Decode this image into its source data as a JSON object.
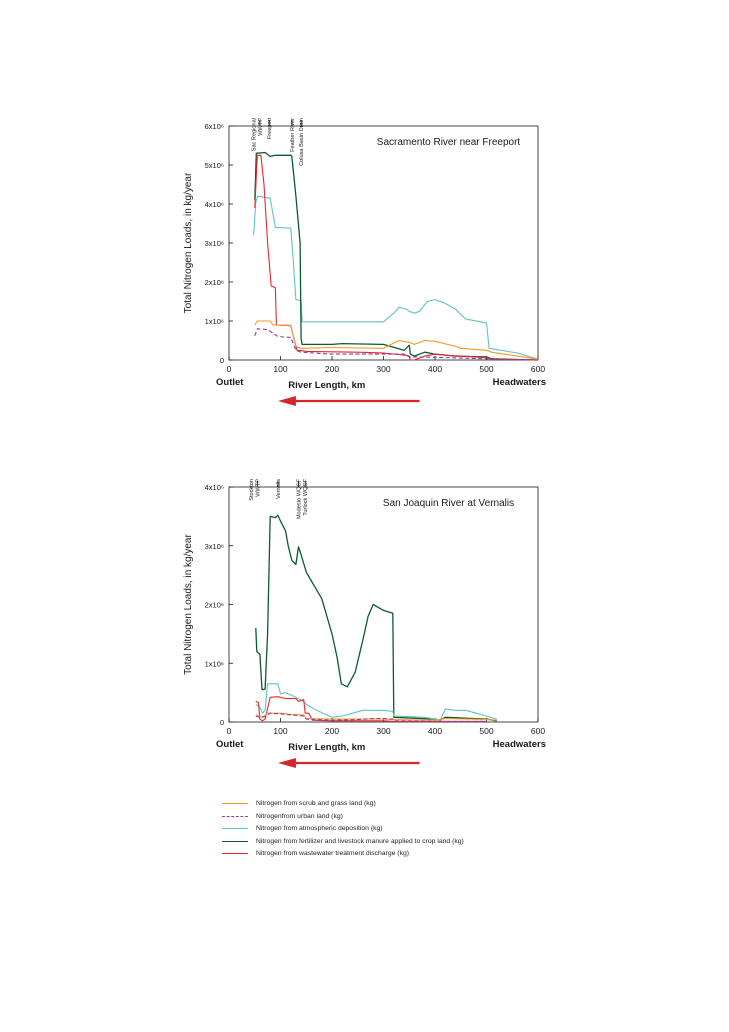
{
  "chart_data": [
    {
      "type": "line",
      "title": "Sacramento River near Freeport",
      "xlabel": "River Length, km",
      "ylabel": "Total Nitrogen Loads, in kg/year",
      "outlet_label": "Outlet",
      "headwaters_label": "Headwaters",
      "xlim": [
        0,
        600
      ],
      "ylim": [
        0,
        6000000
      ],
      "x_ticks": [
        "0",
        "100",
        "200",
        "300",
        "400",
        "500",
        "600"
      ],
      "y_ticks": [
        "0",
        "1x10⁶",
        "2x10⁶",
        "3x10⁶",
        "4x10⁶",
        "5x10⁶",
        "6x10⁶"
      ],
      "landmarks": [
        {
          "label": "Sac Regional WWTP",
          "lines": [
            "Sac Regional",
            "WWTP"
          ],
          "x": 60
        },
        {
          "label": "Freeport",
          "lines": [
            "Freeport"
          ],
          "x": 78
        },
        {
          "label": "Feather River",
          "lines": [
            "Feather River"
          ],
          "x": 122
        },
        {
          "label": "Colusa Basin Drain",
          "lines": [
            "Colusa Basin Drain"
          ],
          "x": 140
        }
      ],
      "series": [
        {
          "key": "atm",
          "points": [
            [
              48,
              3200000
            ],
            [
              52,
              4050000
            ],
            [
              56,
              4200000
            ],
            [
              80,
              4150000
            ],
            [
              90,
              3400000
            ],
            [
              120,
              3380000
            ],
            [
              125,
              2500000
            ],
            [
              130,
              1550000
            ],
            [
              140,
              1520000
            ],
            [
              142,
              980000
            ],
            [
              300,
              980000
            ],
            [
              320,
              1200000
            ],
            [
              330,
              1350000
            ],
            [
              345,
              1300000
            ],
            [
              350,
              1250000
            ],
            [
              360,
              1200000
            ],
            [
              370,
              1250000
            ],
            [
              385,
              1500000
            ],
            [
              400,
              1550000
            ],
            [
              420,
              1450000
            ],
            [
              440,
              1300000
            ],
            [
              460,
              1050000
            ],
            [
              500,
              950000
            ],
            [
              505,
              300000
            ],
            [
              560,
              180000
            ],
            [
              600,
              20000
            ]
          ]
        },
        {
          "key": "fert",
          "points": [
            [
              50,
              4100000
            ],
            [
              53,
              5300000
            ],
            [
              70,
              5320000
            ],
            [
              80,
              5220000
            ],
            [
              90,
              5250000
            ],
            [
              120,
              5250000
            ],
            [
              122,
              5230000
            ],
            [
              130,
              4200000
            ],
            [
              138,
              3000000
            ],
            [
              140,
              550000
            ],
            [
              142,
              400000
            ],
            [
              200,
              400000
            ],
            [
              220,
              420000
            ],
            [
              300,
              400000
            ],
            [
              340,
              250000
            ],
            [
              350,
              380000
            ],
            [
              352,
              150000
            ],
            [
              360,
              100000
            ],
            [
              380,
              200000
            ],
            [
              400,
              150000
            ],
            [
              440,
              100000
            ],
            [
              500,
              80000
            ],
            [
              510,
              30000
            ],
            [
              600,
              0
            ]
          ]
        },
        {
          "key": "wwtp",
          "points": [
            [
              50,
              3900000
            ],
            [
              55,
              5250000
            ],
            [
              62,
              5250000
            ],
            [
              68,
              4500000
            ],
            [
              75,
              3000000
            ],
            [
              82,
              1900000
            ],
            [
              90,
              1850000
            ],
            [
              92,
              900000
            ],
            [
              120,
              880000
            ],
            [
              125,
              600000
            ],
            [
              132,
              250000
            ],
            [
              140,
              240000
            ],
            [
              150,
              220000
            ],
            [
              250,
              200000
            ],
            [
              300,
              180000
            ],
            [
              345,
              120000
            ],
            [
              350,
              100000
            ],
            [
              352,
              0
            ],
            [
              360,
              0
            ],
            [
              380,
              100000
            ],
            [
              400,
              150000
            ],
            [
              420,
              120000
            ],
            [
              450,
              100000
            ],
            [
              500,
              60000
            ],
            [
              510,
              20000
            ],
            [
              600,
              0
            ]
          ]
        },
        {
          "key": "urban",
          "points": [
            [
              50,
              620000
            ],
            [
              55,
              800000
            ],
            [
              75,
              780000
            ],
            [
              95,
              600000
            ],
            [
              120,
              580000
            ],
            [
              130,
              250000
            ],
            [
              140,
              200000
            ],
            [
              200,
              150000
            ],
            [
              340,
              150000
            ],
            [
              350,
              80000
            ],
            [
              400,
              70000
            ],
            [
              450,
              50000
            ],
            [
              500,
              30000
            ],
            [
              600,
              0
            ]
          ]
        },
        {
          "key": "scrub",
          "points": [
            [
              50,
              900000
            ],
            [
              55,
              1000000
            ],
            [
              80,
              1000000
            ],
            [
              85,
              900000
            ],
            [
              120,
              890000
            ],
            [
              125,
              600000
            ],
            [
              130,
              350000
            ],
            [
              140,
              300000
            ],
            [
              200,
              320000
            ],
            [
              300,
              300000
            ],
            [
              330,
              500000
            ],
            [
              350,
              450000
            ],
            [
              360,
              400000
            ],
            [
              380,
              500000
            ],
            [
              400,
              480000
            ],
            [
              440,
              350000
            ],
            [
              450,
              300000
            ],
            [
              500,
              250000
            ],
            [
              510,
              200000
            ],
            [
              560,
              100000
            ],
            [
              600,
              20000
            ]
          ]
        }
      ]
    },
    {
      "type": "line",
      "title": "San Joaquin River at Vernalis",
      "xlabel": "River Length, km",
      "ylabel": "Total Nitrogen Loads, in kg/year",
      "outlet_label": "Outlet",
      "headwaters_label": "Headwaters",
      "xlim": [
        0,
        600
      ],
      "ylim": [
        0,
        4000000
      ],
      "x_ticks": [
        "0",
        "100",
        "200",
        "300",
        "400",
        "500",
        "600"
      ],
      "y_ticks": [
        "0",
        "1x10⁶",
        "2x10⁶",
        "3x10⁶",
        "4x10⁶"
      ],
      "landmarks": [
        {
          "label": "Stockton WWTP",
          "lines": [
            "Stockton",
            "WWTP"
          ],
          "x": 55
        },
        {
          "label": "Vernalis",
          "lines": [
            "Vernalis"
          ],
          "x": 95
        },
        {
          "label": "Modesto WQCF",
          "lines": [
            "Modesto WQCF"
          ],
          "x": 135
        },
        {
          "label": "Turlock WQCF",
          "lines": [
            "Turlock WQCF"
          ],
          "x": 148
        }
      ],
      "series": [
        {
          "key": "fert",
          "points": [
            [
              52,
              1600000
            ],
            [
              54,
              1200000
            ],
            [
              60,
              1150000
            ],
            [
              64,
              550000
            ],
            [
              70,
              560000
            ],
            [
              75,
              1500000
            ],
            [
              80,
              3500000
            ],
            [
              90,
              3480000
            ],
            [
              95,
              3520000
            ],
            [
              100,
              3420000
            ],
            [
              110,
              3250000
            ],
            [
              115,
              3000000
            ],
            [
              122,
              2750000
            ],
            [
              130,
              2680000
            ],
            [
              135,
              2980000
            ],
            [
              138,
              2900000
            ],
            [
              145,
              2700000
            ],
            [
              150,
              2550000
            ],
            [
              160,
              2400000
            ],
            [
              170,
              2250000
            ],
            [
              180,
              2100000
            ],
            [
              190,
              1800000
            ],
            [
              200,
              1500000
            ],
            [
              210,
              1100000
            ],
            [
              218,
              650000
            ],
            [
              230,
              600000
            ],
            [
              245,
              850000
            ],
            [
              260,
              1400000
            ],
            [
              270,
              1800000
            ],
            [
              280,
              2000000
            ],
            [
              300,
              1900000
            ],
            [
              318,
              1850000
            ],
            [
              320,
              80000
            ],
            [
              400,
              50000
            ],
            [
              410,
              30000
            ],
            [
              420,
              80000
            ],
            [
              500,
              50000
            ],
            [
              520,
              20000
            ]
          ]
        },
        {
          "key": "atm",
          "points": [
            [
              52,
              300000
            ],
            [
              60,
              250000
            ],
            [
              65,
              150000
            ],
            [
              70,
              200000
            ],
            [
              75,
              650000
            ],
            [
              95,
              650000
            ],
            [
              100,
              480000
            ],
            [
              110,
              500000
            ],
            [
              130,
              420000
            ],
            [
              145,
              350000
            ],
            [
              150,
              300000
            ],
            [
              170,
              200000
            ],
            [
              200,
              80000
            ],
            [
              220,
              100000
            ],
            [
              240,
              150000
            ],
            [
              260,
              200000
            ],
            [
              300,
              200000
            ],
            [
              318,
              180000
            ],
            [
              320,
              100000
            ],
            [
              380,
              80000
            ],
            [
              400,
              50000
            ],
            [
              410,
              30000
            ],
            [
              420,
              220000
            ],
            [
              440,
              200000
            ],
            [
              460,
              200000
            ],
            [
              480,
              150000
            ],
            [
              500,
              100000
            ],
            [
              520,
              50000
            ]
          ]
        },
        {
          "key": "wwtp",
          "points": [
            [
              52,
              350000
            ],
            [
              57,
              330000
            ],
            [
              60,
              50000
            ],
            [
              65,
              20000
            ],
            [
              70,
              50000
            ],
            [
              80,
              420000
            ],
            [
              95,
              430000
            ],
            [
              110,
              400000
            ],
            [
              130,
              400000
            ],
            [
              135,
              350000
            ],
            [
              145,
              380000
            ],
            [
              148,
              150000
            ],
            [
              155,
              150000
            ],
            [
              162,
              30000
            ],
            [
              200,
              20000
            ],
            [
              300,
              20000
            ],
            [
              320,
              10000
            ],
            [
              500,
              10000
            ]
          ]
        },
        {
          "key": "scrub",
          "points": [
            [
              52,
              120000
            ],
            [
              65,
              80000
            ],
            [
              75,
              150000
            ],
            [
              100,
              150000
            ],
            [
              120,
              130000
            ],
            [
              145,
              120000
            ],
            [
              150,
              60000
            ],
            [
              200,
              50000
            ],
            [
              300,
              50000
            ],
            [
              320,
              40000
            ],
            [
              400,
              30000
            ],
            [
              420,
              60000
            ],
            [
              500,
              40000
            ],
            [
              520,
              30000
            ]
          ]
        },
        {
          "key": "urban",
          "points": [
            [
              52,
              100000
            ],
            [
              60,
              80000
            ],
            [
              70,
              90000
            ],
            [
              80,
              150000
            ],
            [
              100,
              140000
            ],
            [
              120,
              120000
            ],
            [
              145,
              100000
            ],
            [
              150,
              50000
            ],
            [
              200,
              30000
            ],
            [
              250,
              40000
            ],
            [
              280,
              60000
            ],
            [
              300,
              60000
            ],
            [
              318,
              50000
            ],
            [
              320,
              20000
            ],
            [
              400,
              10000
            ],
            [
              500,
              10000
            ]
          ]
        }
      ]
    }
  ],
  "legend": [
    {
      "key": "scrub",
      "label": "Nitrogen from scrub and grass land (kg)",
      "color": "#f39a2c",
      "dashed": false
    },
    {
      "key": "urban",
      "label": "Nitrogenfrom urban land (kg)",
      "color": "#8a3fa6",
      "dashed": true
    },
    {
      "key": "atm",
      "label": "Nitrogen from atmospheric deposition (kg)",
      "color": "#5fc3c8",
      "dashed": false
    },
    {
      "key": "fert",
      "label": "Nitrogen from fertilizer and livestock manure applied to crop land (kg)",
      "color": "#0b5a2e",
      "dashed": false
    },
    {
      "key": "wwtp",
      "label": "Nitrogen from wastewater treatment discharge (kg)",
      "color": "#e8272a",
      "dashed": false
    }
  ],
  "colors": {
    "arrow": "#d6262a",
    "axis": "#1a1a1a"
  }
}
